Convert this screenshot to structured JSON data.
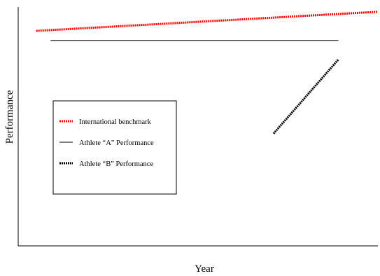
{
  "chart_data": {
    "type": "line",
    "title": "",
    "xlabel": "Year",
    "ylabel": "Performance",
    "x_ticks_shown": false,
    "y_ticks_shown": false,
    "grid": false,
    "legend_position": "left",
    "series": [
      {
        "name": "International benchmark",
        "color": "#ff0000",
        "style": "dashed-thick",
        "x": [
          0.05,
          1.0
        ],
        "y": [
          0.9,
          0.98
        ]
      },
      {
        "name": "Athlete “A” Performance",
        "color": "#000000",
        "style": "solid-thin",
        "x": [
          0.09,
          0.89
        ],
        "y": [
          0.86,
          0.86
        ]
      },
      {
        "name": "Athlete “B” Performance",
        "color": "#000000",
        "style": "dashed-thick",
        "x": [
          0.71,
          0.89
        ],
        "y": [
          0.47,
          0.78
        ]
      }
    ]
  }
}
